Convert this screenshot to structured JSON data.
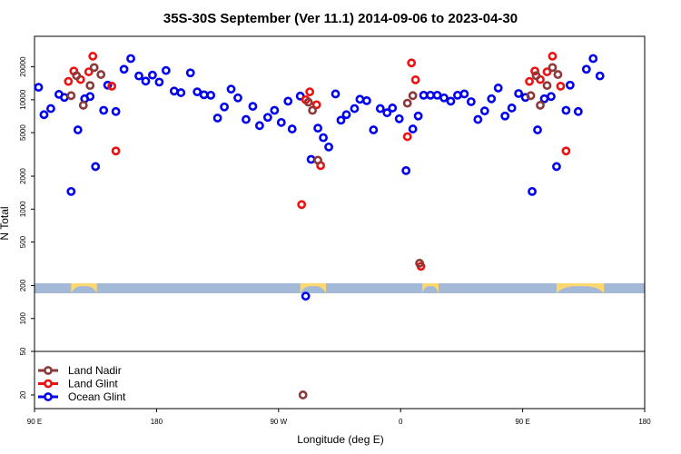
{
  "chart_data": {
    "type": "scatter",
    "title": "35S-30S September (Ver 11.1)   2014-09-06 to 2023-04-30",
    "xlabel": "Longitude (deg E)",
    "ylabel": "N Total",
    "x_scale": "longitude, 90 E to 180 with wrap past 180",
    "y_scale": "log",
    "xlim": [
      90,
      540
    ],
    "ylim": [
      15,
      38000
    ],
    "y_split_value": 50,
    "x_ticks": [
      {
        "value": 90,
        "label": "90 E"
      },
      {
        "value": 180,
        "label": "180"
      },
      {
        "value": 270,
        "label": "90 W"
      },
      {
        "value": 360,
        "label": "0"
      },
      {
        "value": 450,
        "label": "90 E"
      },
      {
        "value": 540,
        "label": "180"
      }
    ],
    "y_ticks": [
      {
        "value": 20,
        "label": "20"
      },
      {
        "value": 50,
        "label": "50"
      },
      {
        "value": 100,
        "label": "100"
      },
      {
        "value": 200,
        "label": "200"
      },
      {
        "value": 500,
        "label": "500"
      },
      {
        "value": 1000,
        "label": "1000"
      },
      {
        "value": 2000,
        "label": "2000"
      },
      {
        "value": 5000,
        "label": "5000"
      },
      {
        "value": 10000,
        "label": "10000"
      },
      {
        "value": 20000,
        "label": "20000"
      }
    ],
    "land_band": {
      "ocean_color": "#a3b9d6",
      "land_color": "#fdd871",
      "y_range": [
        170,
        210
      ],
      "land_segments": [
        [
          117,
          136
        ],
        [
          286,
          305
        ],
        [
          376,
          388
        ],
        [
          475,
          510
        ]
      ]
    },
    "legend": {
      "placement": "bottom-left",
      "entries": [
        {
          "name": "Land Nadir",
          "color": "#8b3a3a"
        },
        {
          "name": "Land Glint",
          "color": "#ee1111"
        },
        {
          "name": "Ocean Glint",
          "color": "#0000ee"
        }
      ]
    },
    "series": [
      {
        "name": "Ocean Glint",
        "color": "#0000ee",
        "points": [
          [
            93,
            13000
          ],
          [
            97,
            7300
          ],
          [
            102,
            8300
          ],
          [
            108,
            11200
          ],
          [
            112,
            10500
          ],
          [
            117,
            1450
          ],
          [
            122,
            5300
          ],
          [
            127,
            10200
          ],
          [
            131,
            10700
          ],
          [
            135,
            2450
          ],
          [
            141,
            8000
          ],
          [
            144,
            13600
          ],
          [
            150,
            7800
          ],
          [
            156,
            19000
          ],
          [
            161,
            23800
          ],
          [
            167,
            16500
          ],
          [
            172,
            14800
          ],
          [
            177,
            16800
          ],
          [
            182,
            14500
          ],
          [
            187,
            18500
          ],
          [
            193,
            12000
          ],
          [
            198,
            11600
          ],
          [
            205,
            17600
          ],
          [
            210,
            11800
          ],
          [
            215,
            11100
          ],
          [
            220,
            11000
          ],
          [
            225,
            6800
          ],
          [
            230,
            8600
          ],
          [
            235,
            12500
          ],
          [
            240,
            10400
          ],
          [
            246,
            6600
          ],
          [
            251,
            8700
          ],
          [
            256,
            5800
          ],
          [
            262,
            6900
          ],
          [
            267,
            8000
          ],
          [
            272,
            6200
          ],
          [
            277,
            9700
          ],
          [
            280,
            5400
          ],
          [
            286,
            10800
          ],
          [
            290,
            160
          ],
          [
            294,
            2850
          ],
          [
            299,
            5500
          ],
          [
            303,
            4500
          ],
          [
            307,
            3700
          ],
          [
            312,
            11300
          ],
          [
            316,
            6500
          ],
          [
            320,
            7300
          ],
          [
            326,
            8300
          ],
          [
            330,
            10100
          ],
          [
            335,
            9800
          ],
          [
            340,
            5300
          ],
          [
            345,
            8300
          ],
          [
            350,
            7600
          ],
          [
            354,
            8400
          ],
          [
            359,
            6700
          ],
          [
            364,
            2250
          ],
          [
            369,
            5400
          ],
          [
            373,
            7100
          ],
          [
            377,
            11000
          ],
          [
            382,
            11000
          ],
          [
            387,
            11000
          ],
          [
            392,
            10400
          ],
          [
            397,
            9700
          ],
          [
            402,
            11000
          ],
          [
            407,
            11300
          ],
          [
            412,
            9600
          ],
          [
            417,
            6600
          ],
          [
            422,
            7900
          ],
          [
            427,
            10200
          ],
          [
            432,
            12800
          ],
          [
            437,
            7100
          ],
          [
            442,
            8400
          ],
          [
            447,
            11400
          ],
          [
            452,
            10500
          ],
          [
            457,
            1450
          ],
          [
            461,
            5300
          ],
          [
            466,
            10200
          ],
          [
            471,
            10700
          ],
          [
            475,
            2450
          ],
          [
            482,
            8000
          ],
          [
            485,
            13600
          ],
          [
            491,
            7800
          ],
          [
            497,
            19000
          ],
          [
            502,
            23800
          ],
          [
            507,
            16500
          ]
        ]
      },
      {
        "name": "Land Glint",
        "color": "#ee1111",
        "points": [
          [
            115,
            14700
          ],
          [
            119,
            18300
          ],
          [
            124,
            15300
          ],
          [
            130,
            18000
          ],
          [
            133,
            25000
          ],
          [
            147,
            13300
          ],
          [
            150,
            3400
          ],
          [
            287,
            1100
          ],
          [
            290,
            10000
          ],
          [
            293,
            11800
          ],
          [
            298,
            9000
          ],
          [
            301,
            2500
          ],
          [
            365,
            4600
          ],
          [
            368,
            21700
          ],
          [
            371,
            15200
          ],
          [
            375,
            300
          ],
          [
            455,
            14700
          ],
          [
            459,
            18300
          ],
          [
            463,
            15300
          ],
          [
            468,
            18000
          ],
          [
            472,
            25000
          ],
          [
            478,
            13300
          ],
          [
            482,
            3400
          ]
        ]
      },
      {
        "name": "Land Nadir",
        "color": "#8b3a3a",
        "points": [
          [
            117,
            10900
          ],
          [
            121,
            16600
          ],
          [
            126,
            8900
          ],
          [
            131,
            13500
          ],
          [
            134,
            19700
          ],
          [
            139,
            17000
          ],
          [
            288,
            20
          ],
          [
            292,
            9500
          ],
          [
            295,
            8000
          ],
          [
            299,
            2800
          ],
          [
            365,
            9300
          ],
          [
            369,
            10900
          ],
          [
            374,
            320
          ],
          [
            456,
            10900
          ],
          [
            460,
            16600
          ],
          [
            463,
            8900
          ],
          [
            468,
            13500
          ],
          [
            472,
            19700
          ],
          [
            476,
            17000
          ]
        ]
      }
    ]
  }
}
